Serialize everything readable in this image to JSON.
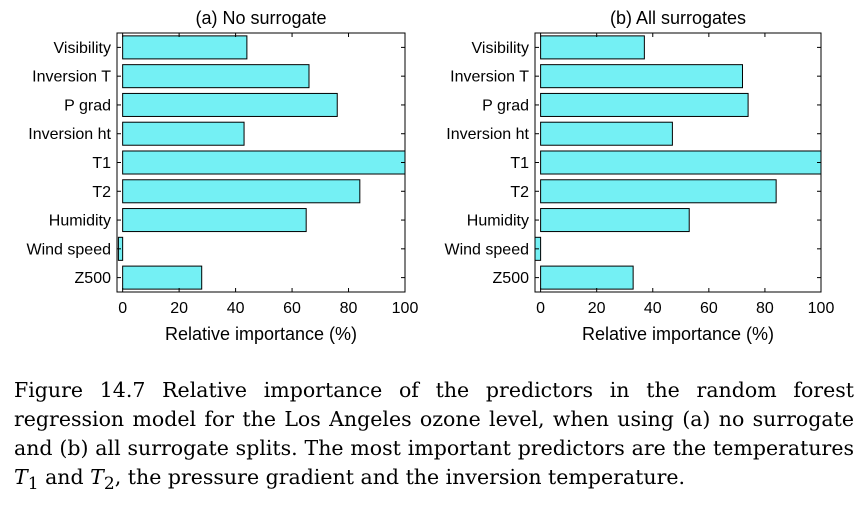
{
  "chart_data": [
    {
      "type": "bar",
      "orientation": "horizontal",
      "title": "(a)  No surrogate",
      "categories": [
        "Visibility",
        "Inversion T",
        "P grad",
        "Inversion ht",
        "T1",
        "T2",
        "Humidity",
        "Wind speed",
        "Z500"
      ],
      "values": [
        44,
        66,
        76,
        43,
        100,
        84,
        65,
        -1.5,
        28
      ],
      "xlabel": "Relative importance (%)",
      "ylabel": "",
      "xlim": [
        -2,
        100
      ],
      "xticks": [
        "0",
        "20",
        "40",
        "60",
        "80",
        "100"
      ],
      "grid": false,
      "bar_color": "#74f0f4"
    },
    {
      "type": "bar",
      "orientation": "horizontal",
      "title": "(b)  All surrogates",
      "categories": [
        "Visibility",
        "Inversion T",
        "P grad",
        "Inversion ht",
        "T1",
        "T2",
        "Humidity",
        "Wind speed",
        "Z500"
      ],
      "values": [
        37,
        72,
        74,
        47,
        100,
        84,
        53,
        -2,
        33
      ],
      "xlabel": "Relative importance (%)",
      "ylabel": "",
      "xlim": [
        -2,
        100
      ],
      "xticks": [
        "0",
        "20",
        "40",
        "60",
        "80",
        "100"
      ],
      "grid": false,
      "bar_color": "#74f0f4"
    }
  ],
  "caption": {
    "prefix": "Figure 14.7 Relative importance of the predictors in the random forest regression model for the Los Angeles ozone level, when using (a) no surrogate and (b) all surrogate splits. The most important predictors are the temperatures ",
    "t1": "T",
    "t1_sub": "1",
    "mid": " and ",
    "t2": "T",
    "t2_sub": "2",
    "suffix": ", the pressure gradient and the inversion temperature."
  }
}
